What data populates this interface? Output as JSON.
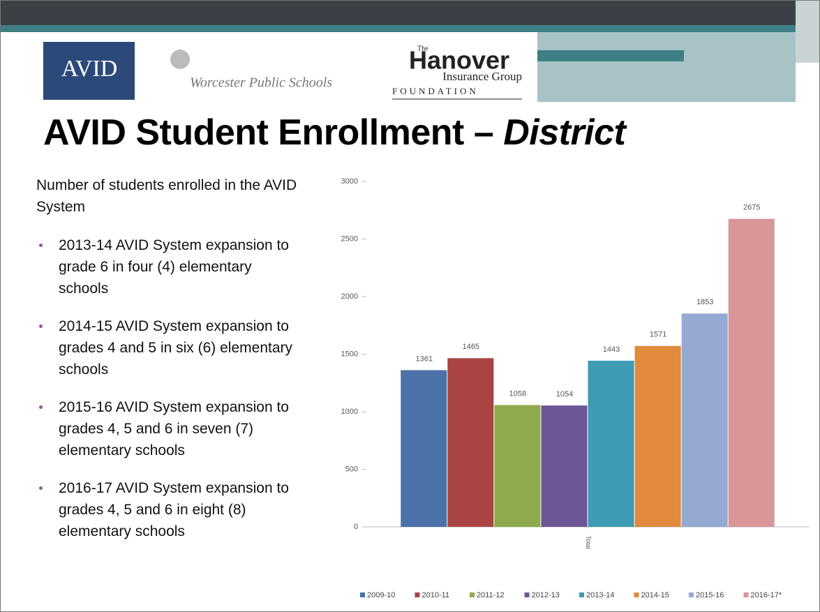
{
  "logos": {
    "avid": "AVID",
    "worcester": "Worcester Public Schools",
    "hanover_the": "The",
    "hanover_name": "Hanover",
    "hanover_group": "Insurance Group",
    "hanover_foundation": "FOUNDATION"
  },
  "title": "AVID Student Enrollment –",
  "title_italic": "District",
  "intro": "Number of students enrolled in the AVID System",
  "bullets": [
    "2013-14 AVID System expansion to grade 6 in four (4) elementary schools",
    "2014-15 AVID System expansion to grades 4 and 5 in six (6) elementary schools",
    "2015-16 AVID System expansion to grades 4, 5 and 6 in seven (7) elementary schools",
    "2016-17 AVID System expansion to grades 4, 5 and 6 in eight (8) elementary schools"
  ],
  "chart_data": {
    "type": "bar",
    "categories": [
      "Total"
    ],
    "series": [
      {
        "name": "2009-10",
        "color": "#4a72a8",
        "values": [
          1361
        ]
      },
      {
        "name": "2010-11",
        "color": "#a94442",
        "values": [
          1465
        ]
      },
      {
        "name": "2011-12",
        "color": "#8fab4e",
        "values": [
          1058
        ]
      },
      {
        "name": "2012-13",
        "color": "#6e5694",
        "values": [
          1054
        ]
      },
      {
        "name": "2013-14",
        "color": "#3f9ab3",
        "values": [
          1443
        ]
      },
      {
        "name": "2014-15",
        "color": "#df8a3c",
        "values": [
          1571
        ]
      },
      {
        "name": "2015-16",
        "color": "#95aad3",
        "values": [
          1853
        ]
      },
      {
        "name": "2016-17*",
        "color": "#d99597",
        "values": [
          2675
        ]
      }
    ],
    "ylim": [
      0,
      3000
    ],
    "yticks": [
      0,
      500,
      1000,
      1500,
      2000,
      2500,
      3000
    ],
    "grid": false,
    "legend": "bottom"
  }
}
